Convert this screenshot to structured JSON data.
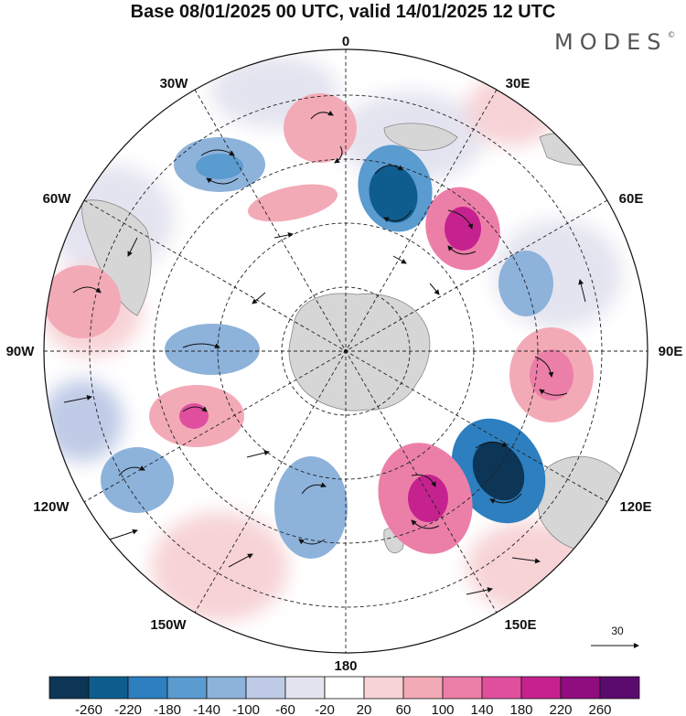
{
  "title": "Base 08/01/2025 00 UTC, valid 14/01/2025 12 UTC",
  "brand": "MODES",
  "brand_mark": "©",
  "longitude_labels": {
    "lon0": "0",
    "lon30e": "30E",
    "lon60e": "60E",
    "lon90e": "90E",
    "lon120e": "120E",
    "lon150e": "150E",
    "lon180": "180",
    "lon150w": "150W",
    "lon120w": "120W",
    "lon90w": "90W",
    "lon60w": "60W",
    "lon30w": "30W"
  },
  "reference_vector": "30",
  "colorbar": {
    "ticks": [
      "-260",
      "-220",
      "-180",
      "-140",
      "-100",
      "-60",
      "-20",
      "20",
      "60",
      "100",
      "140",
      "180",
      "220",
      "260"
    ],
    "colors": [
      "#0c3556",
      "#0f5d8f",
      "#2d7fbf",
      "#5a9bd0",
      "#8db3db",
      "#bfcbe6",
      "#e4e4f0",
      "#ffffff",
      "#f7d3d6",
      "#f3aab7",
      "#ec7fa8",
      "#e04f9e",
      "#c5228f",
      "#8f0d7e",
      "#5b0a6e"
    ]
  },
  "colors": {
    "land": "#d6d6d6",
    "grid": "#222222"
  }
}
